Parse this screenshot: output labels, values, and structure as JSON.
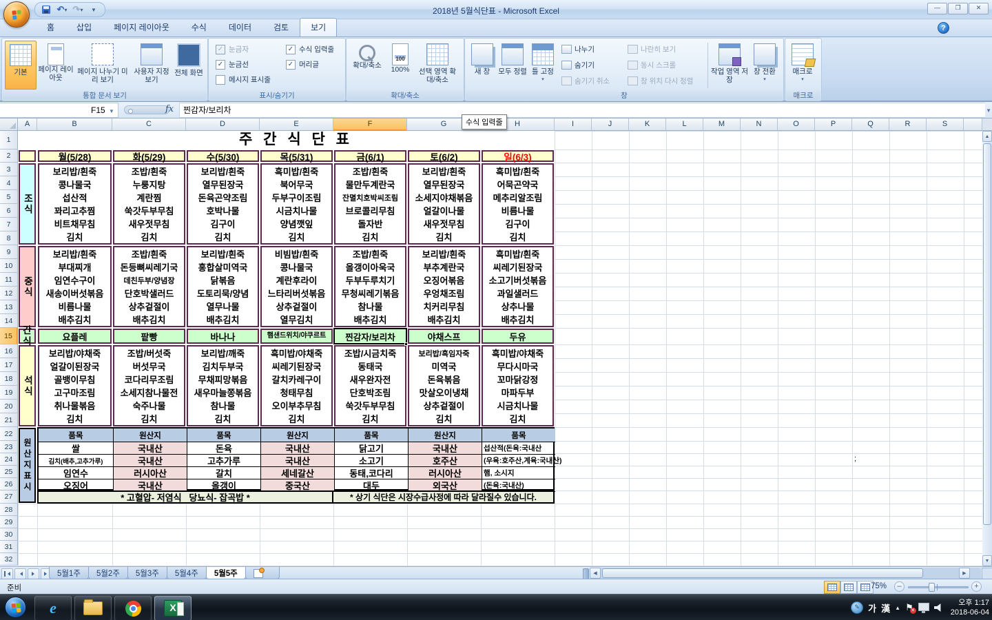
{
  "window": {
    "title": "2018년 5월식단표 - Microsoft Excel"
  },
  "ribbon": {
    "tabs": [
      "홈",
      "삽입",
      "페이지 레이아웃",
      "수식",
      "데이터",
      "검토",
      "보기"
    ],
    "active_tab": "보기",
    "view_group": {
      "title": "통합 문서 보기",
      "buttons": [
        "기본",
        "페이지 레이아웃",
        "페이지 나누기 미리 보기",
        "사용자 지정 보기",
        "전체 화면"
      ],
      "active_button": "기본"
    },
    "show_hide_group": {
      "title": "표시/숨기기",
      "checkboxes": [
        {
          "label": "눈금자",
          "checked": true,
          "enabled": false
        },
        {
          "label": "눈금선",
          "checked": true,
          "enabled": true
        },
        {
          "label": "메시지 표시줄",
          "checked": false,
          "enabled": true
        },
        {
          "label": "수식 입력줄",
          "checked": true,
          "enabled": true
        },
        {
          "label": "머리글",
          "checked": true,
          "enabled": true
        }
      ]
    },
    "zoom_group": {
      "title": "확대/축소",
      "buttons": [
        "확대/축소",
        "100%",
        "선택 영역 확대/축소"
      ]
    },
    "window_group": {
      "title": "창",
      "big_buttons": [
        "새 창",
        "모두 정렬",
        "틀 고정"
      ],
      "small_buttons": [
        "나누기",
        "숨기기",
        "숨기기 취소"
      ],
      "disabled_buttons": [
        "나란히 보기",
        "동시 스크롤",
        "창 위치 다시 정렬"
      ],
      "extra_buttons": [
        "작업 영역 저장",
        "창 전환"
      ]
    },
    "macro_group": {
      "title": "매크로",
      "button": "매크로"
    }
  },
  "formula_bar": {
    "name_box": "F15",
    "fx": "fx",
    "value": "찐감자/보리차"
  },
  "tooltip": "수식 입력줄",
  "sheet": {
    "columns": [
      "A",
      "B",
      "C",
      "D",
      "E",
      "F",
      "G",
      "H",
      "I",
      "J",
      "K",
      "L",
      "M",
      "N",
      "O",
      "P",
      "Q",
      "R",
      "S"
    ],
    "selected_column": "F",
    "rows": [
      "1",
      "2",
      "3",
      "4",
      "5",
      "6",
      "7",
      "8",
      "9",
      "10",
      "11",
      "12",
      "13",
      "14",
      "15",
      "16",
      "17",
      "18",
      "19",
      "20",
      "21",
      "22",
      "23",
      "24",
      "25",
      "26",
      "27",
      "28",
      "29",
      "30",
      "31",
      "32"
    ],
    "selected_row": "15",
    "stray_text": ";"
  },
  "menu": {
    "title": "주 간 식 단 표",
    "days": [
      "월(5/28)",
      "화(5/29)",
      "수(5/30)",
      "목(5/31)",
      "금(6/1)",
      "토(6/2)",
      "일(6/3)"
    ],
    "breakfast": {
      "label": "조식",
      "columns": [
        [
          "보리밥/흰죽",
          "콩나물국",
          "섭산적",
          "꽈리고추찜",
          "비트채무침",
          "김치"
        ],
        [
          "조밥/흰죽",
          "누룽지탕",
          "계란찜",
          "쑥갓두부무침",
          "새우젓무침",
          "김치"
        ],
        [
          "보리밥/흰죽",
          "열무된장국",
          "돈육곤약조림",
          "호박나물",
          "김구이",
          "김치"
        ],
        [
          "흑미밥/흰죽",
          "북어무국",
          "두부구이조림",
          "시금치나물",
          "양념깻잎",
          "김치"
        ],
        [
          "조밥/흰죽",
          "물만두계란국",
          "잔멸치호박씨조림",
          "브로콜리무침",
          "돌자반",
          "김치"
        ],
        [
          "보리밥/흰죽",
          "열무된장국",
          "소세지야채볶음",
          "얼갈이나물",
          "새우젓무침",
          "김치"
        ],
        [
          "흑미밥/흰죽",
          "어묵곤약국",
          "메추리알조림",
          "비름나물",
          "김구이",
          "김치"
        ]
      ]
    },
    "lunch": {
      "label": "중식",
      "columns": [
        [
          "보리밥/흰죽",
          "부대찌개",
          "임연수구이",
          "새송이버섯볶음",
          "비름나물",
          "배추김치"
        ],
        [
          "조밥/흰죽",
          "돈등뼈씨레기국",
          "데친두부/양념장",
          "단호박샐러드",
          "상추겉절이",
          "배추김치"
        ],
        [
          "보리밥/흰죽",
          "홍합살미역국",
          "닭볶음",
          "도토리묵/양념",
          "열무나물",
          "배추김치"
        ],
        [
          "비빔밥/흰죽",
          "콩나물국",
          "계란후라이",
          "느타리버섯볶음",
          "상추겉절이",
          "열무김치"
        ],
        [
          "조밥/흰죽",
          "올갱이아욱국",
          "두부두루치기",
          "무청씨레기볶음",
          "참나물",
          "배추김치"
        ],
        [
          "보리밥/흰죽",
          "부추계란국",
          "오징어볶음",
          "우엉채조림",
          "치커리무침",
          "배추김치"
        ],
        [
          "흑미밥/흰죽",
          "씨레기된장국",
          "소고기버섯볶음",
          "과일샐러드",
          "상추나물",
          "배추김치"
        ]
      ]
    },
    "snack": {
      "label": "간식",
      "items": [
        "요플레",
        "팥빵",
        "바나나",
        "햄샌드위치/야쿠르트",
        "찐감자/보리차",
        "야채스프",
        "두유"
      ],
      "selected_item": "찐감자/보리차"
    },
    "dinner": {
      "label": "석식",
      "columns": [
        [
          "보리밥/야채죽",
          "얼갈이된장국",
          "골뱅이무침",
          "고구마조림",
          "취나물볶음",
          "김치"
        ],
        [
          "조밥/버섯죽",
          "버섯무국",
          "코다리무조림",
          "소세지참나물전",
          "숙주나물",
          "김치"
        ],
        [
          "보리밥/깨죽",
          "김치두부국",
          "무채피망볶음",
          "새우마늘쫑볶음",
          "참나물",
          "김치"
        ],
        [
          "흑미밥/야채죽",
          "씨레기된장국",
          "갈치카레구이",
          "청태무침",
          "오이부추무침",
          "김치"
        ],
        [
          "조밥/시금치죽",
          "동태국",
          "새우완자전",
          "단호박조림",
          "쑥갓두부무침",
          "김치"
        ],
        [
          "보리밥/흑임자죽",
          "미역국",
          "돈육볶음",
          "맛살오이냉채",
          "상추겉절이",
          "김치"
        ],
        [
          "흑미밥/야채죽",
          "무다시마국",
          "꼬마닭강정",
          "마파두부",
          "시금치나물",
          "김치"
        ]
      ]
    },
    "origin": {
      "label": "원산지표시",
      "headers": [
        "품목",
        "원산지",
        "품목",
        "원산지",
        "품목",
        "원산지",
        "품목"
      ],
      "rows": [
        [
          "쌀",
          "국내산",
          "돈육",
          "국내산",
          "닭고기",
          "국내산",
          "섭산적(돈육:국내산"
        ],
        [
          "김치(배추,고추가루)",
          "국내산",
          "고추가루",
          "국내산",
          "소고기",
          "호주산",
          "(우육:호주산,계육:국내산)"
        ],
        [
          "임연수",
          "러시아산",
          "갈치",
          "세네갈산",
          "동태,코다리",
          "러시아산",
          "햄, 소시지"
        ],
        [
          "오징어",
          "국내산",
          "올갱이",
          "중국산",
          "대두",
          "외국산",
          "(돈육:국내산)"
        ]
      ]
    },
    "footnote_left": "* 고혈압- 저염식   당뇨식- 잡곡밥 *",
    "footnote_right": "* 상기 식단은 시장수급사정에 따라 달라질수 있습니다."
  },
  "sheet_tabs": {
    "tabs": [
      "5월1주",
      "5월2주",
      "5월3주",
      "5월4주",
      "5월5주"
    ],
    "active": "5월5주"
  },
  "status_bar": {
    "ready": "준비",
    "zoom": "75%"
  },
  "taskbar": {
    "ime_korean": "가",
    "ime_hanja": "漢",
    "clock_time": "오후 1:17",
    "clock_date": "2018-06-04"
  },
  "colors": {
    "table_border": "#5e2750",
    "day_header_bg": "#ffffcc",
    "sunday_red": "#ff0000",
    "breakfast_bg": "#ccffff",
    "lunch_bg": "#ffcccc",
    "snack_bg": "#ccffcc",
    "dinner_bg": "#ffffcc",
    "origin_header_bg": "#b8cce4",
    "origin_value_bg": "#f2dcdb",
    "footnote_bg": "#ebf1de",
    "selection_header": "#f9c25e"
  }
}
